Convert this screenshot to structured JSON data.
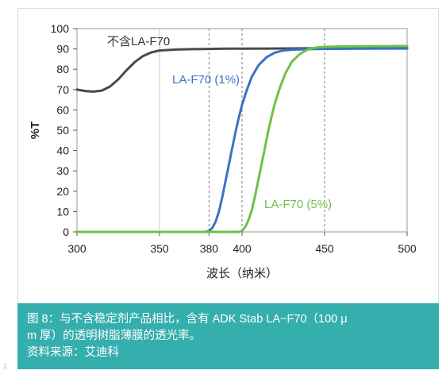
{
  "chart_data": {
    "type": "line",
    "title": "",
    "xlabel": "波长（纳米）",
    "ylabel": "%T",
    "xlim": [
      300,
      500
    ],
    "ylim": [
      0,
      100
    ],
    "x_ticks": [
      300,
      350,
      380,
      400,
      450,
      500
    ],
    "y_ticks": [
      0,
      10,
      20,
      30,
      40,
      50,
      60,
      70,
      80,
      90,
      100
    ],
    "reference_lines_x": [
      380,
      400,
      450
    ],
    "grid": "vertical",
    "series": [
      {
        "name": "不含LA-F70",
        "color": "#4a4a4a",
        "label_color": "#333333",
        "x": [
          300,
          305,
          310,
          315,
          320,
          325,
          330,
          335,
          340,
          345,
          350,
          360,
          370,
          380,
          390,
          400,
          420,
          450,
          480,
          500
        ],
        "y": [
          70,
          69.3,
          69,
          69.5,
          71.5,
          75,
          79.5,
          83.5,
          86.5,
          88.3,
          89.2,
          89.7,
          89.9,
          90,
          90.1,
          90.1,
          90.2,
          90.3,
          90.4,
          90.5
        ]
      },
      {
        "name": "LA-F70 (1%)",
        "color": "#3a73c4",
        "label_color": "#3a73c4",
        "x": [
          300,
          370,
          378,
          380,
          382,
          384,
          386,
          388,
          390,
          392,
          394,
          396,
          398,
          400,
          403,
          406,
          410,
          415,
          420,
          425,
          430,
          440,
          450,
          470,
          500
        ],
        "y": [
          0,
          0,
          0,
          0.5,
          2,
          5,
          10,
          17,
          25,
          33,
          41,
          49,
          56,
          62.5,
          70,
          76.5,
          82,
          86,
          88.2,
          89.2,
          89.6,
          89.9,
          90,
          90.1,
          90.2
        ]
      },
      {
        "name": "LA-F70 (5%)",
        "color": "#6fc04a",
        "label_color": "#6fc04a",
        "x": [
          300,
          390,
          398,
          400,
          402,
          404,
          406,
          408,
          410,
          412,
          414,
          416,
          418,
          420,
          423,
          426,
          430,
          435,
          440,
          445,
          450,
          460,
          475,
          500
        ],
        "y": [
          0,
          0,
          0,
          0.5,
          2.5,
          6,
          11,
          18,
          26,
          34,
          42,
          50,
          57,
          63.5,
          71,
          77.5,
          83.5,
          87.5,
          89.8,
          90.7,
          91,
          91.2,
          91.3,
          91.4
        ]
      }
    ]
  },
  "caption": {
    "line1": "图 8：与不含稳定剂产品相比，含有  ADK Stab LA−F70（100 μ",
    "line2": "m 厚）的透明树脂薄膜的透光率。",
    "line3": "资料来源：艾迪科"
  },
  "corner_mark": "1"
}
